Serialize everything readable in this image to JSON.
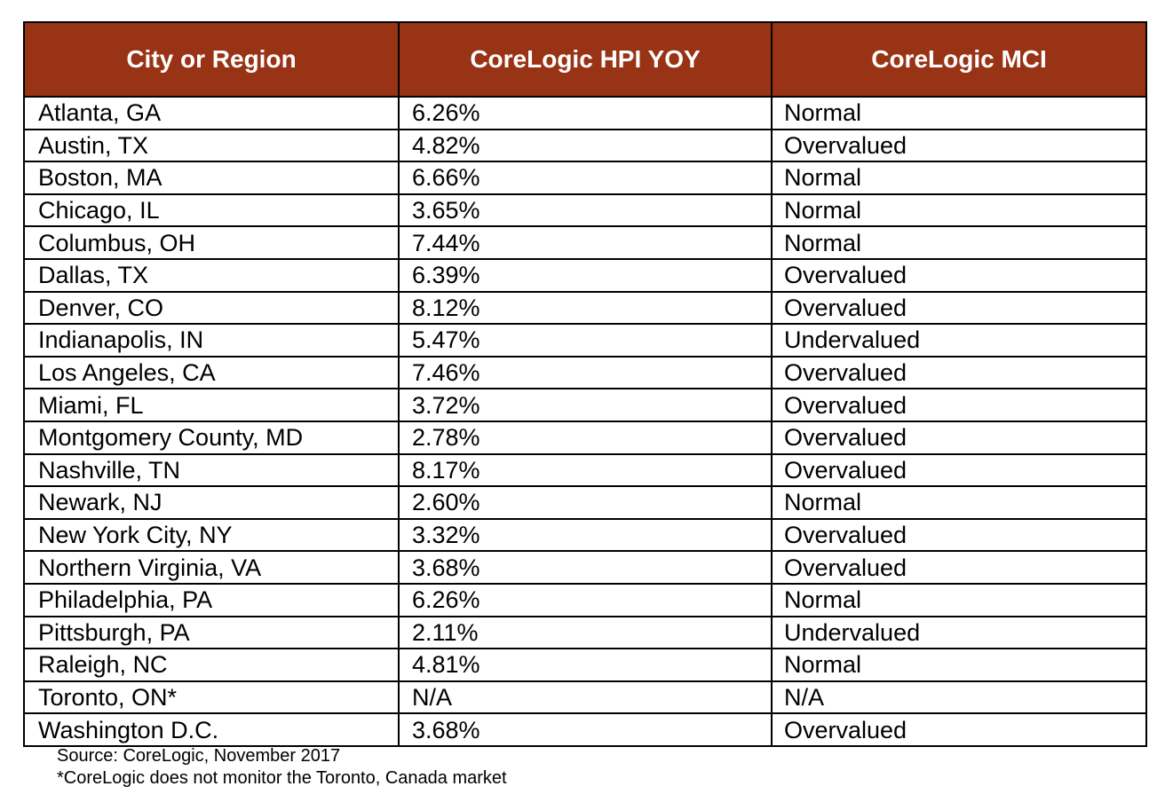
{
  "table": {
    "headers": [
      "City or Region",
      "CoreLogic HPI YOY",
      "CoreLogic MCI"
    ],
    "rows": [
      [
        "Atlanta, GA",
        "6.26%",
        "Normal"
      ],
      [
        "Austin, TX",
        "4.82%",
        "Overvalued"
      ],
      [
        "Boston, MA",
        "6.66%",
        "Normal"
      ],
      [
        "Chicago, IL",
        "3.65%",
        "Normal"
      ],
      [
        "Columbus, OH",
        "7.44%",
        "Normal"
      ],
      [
        "Dallas, TX",
        "6.39%",
        "Overvalued"
      ],
      [
        "Denver, CO",
        "8.12%",
        "Overvalued"
      ],
      [
        "Indianapolis, IN",
        "5.47%",
        "Undervalued"
      ],
      [
        "Los Angeles, CA",
        "7.46%",
        "Overvalued"
      ],
      [
        "Miami, FL",
        "3.72%",
        "Overvalued"
      ],
      [
        "Montgomery County, MD",
        "2.78%",
        "Overvalued"
      ],
      [
        "Nashville, TN",
        "8.17%",
        "Overvalued"
      ],
      [
        "Newark, NJ",
        "2.60%",
        "Normal"
      ],
      [
        "New York City, NY",
        "3.32%",
        "Overvalued"
      ],
      [
        "Northern Virginia, VA",
        "3.68%",
        "Overvalued"
      ],
      [
        "Philadelphia, PA",
        "6.26%",
        "Normal"
      ],
      [
        "Pittsburgh, PA",
        "2.11%",
        "Undervalued"
      ],
      [
        "Raleigh, NC",
        "4.81%",
        "Normal"
      ],
      [
        "Toronto, ON*",
        "N/A",
        "N/A"
      ],
      [
        "Washington D.C.",
        "3.68%",
        "Overvalued"
      ]
    ]
  },
  "footnotes": {
    "source": "Source: CoreLogic, November 2017",
    "note": "*CoreLogic does not monitor the Toronto, Canada market"
  },
  "colors": {
    "header_background": "#983415",
    "header_text": "#ffffff",
    "border": "#000000"
  }
}
